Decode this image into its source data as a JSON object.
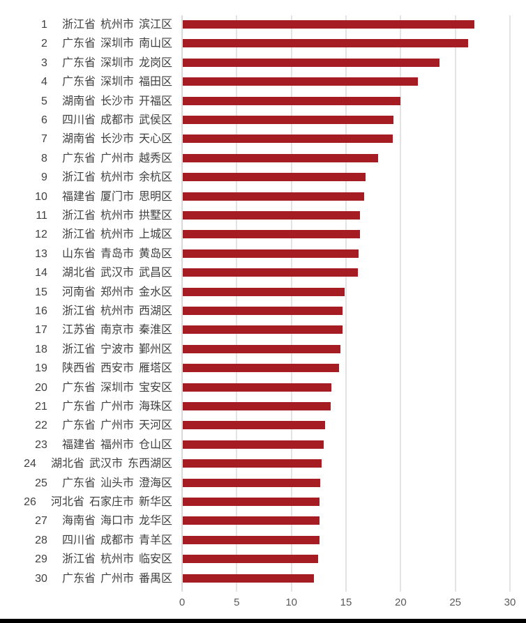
{
  "chart_data": {
    "type": "bar",
    "orientation": "horizontal",
    "title": "",
    "xlabel": "",
    "ylabel": "",
    "xlim": [
      0,
      30
    ],
    "x_ticks": [
      0,
      5,
      10,
      15,
      20,
      25,
      30
    ],
    "grid": true,
    "legend": null,
    "bar_color": "#a51d22",
    "categories": [
      "1 浙江省 杭州市 滨江区",
      "2 广东省 深圳市 南山区",
      "3 广东省 深圳市 龙岗区",
      "4 广东省 深圳市 福田区",
      "5 湖南省 长沙市 开福区",
      "6 四川省 成都市 武侯区",
      "7 湖南省 长沙市 天心区",
      "8 广东省 广州市 越秀区",
      "9 浙江省 杭州市 余杭区",
      "10 福建省 厦门市 思明区",
      "11 浙江省 杭州市 拱墅区",
      "12 浙江省 杭州市 上城区",
      "13 山东省 青岛市 黄岛区",
      "14 湖北省 武汉市 武昌区",
      "15 河南省 郑州市 金水区",
      "16 浙江省 杭州市 西湖区",
      "17 江苏省 南京市 秦淮区",
      "18 浙江省 宁波市 鄞州区",
      "19 陕西省 西安市 雁塔区",
      "20 广东省 深圳市 宝安区",
      "21 广东省 广州市 海珠区",
      "22 广东省 广州市 天河区",
      "23 福建省 福州市 仓山区",
      "24 湖北省 武汉市 东西湖区",
      "25 广东省 汕头市 澄海区",
      "26 河北省 石家庄市 新华区",
      "27 海南省 海口市 龙华区",
      "28 四川省 成都市 青羊区",
      "29 浙江省 杭州市 临安区",
      "30 广东省 广州市 番禺区"
    ],
    "values": [
      26.7,
      26.1,
      23.5,
      21.5,
      19.9,
      19.3,
      19.2,
      17.9,
      16.7,
      16.6,
      16.2,
      16.2,
      16.1,
      16.0,
      14.8,
      14.6,
      14.6,
      14.4,
      14.3,
      13.6,
      13.5,
      13.0,
      12.9,
      12.7,
      12.6,
      12.5,
      12.5,
      12.5,
      12.4,
      12.0
    ]
  },
  "rows": [
    {
      "rank": "1",
      "province": "浙江省",
      "city": "杭州市",
      "district": "滨江区"
    },
    {
      "rank": "2",
      "province": "广东省",
      "city": "深圳市",
      "district": "南山区"
    },
    {
      "rank": "3",
      "province": "广东省",
      "city": "深圳市",
      "district": "龙岗区"
    },
    {
      "rank": "4",
      "province": "广东省",
      "city": "深圳市",
      "district": "福田区"
    },
    {
      "rank": "5",
      "province": "湖南省",
      "city": "长沙市",
      "district": "开福区"
    },
    {
      "rank": "6",
      "province": "四川省",
      "city": "成都市",
      "district": "武侯区"
    },
    {
      "rank": "7",
      "province": "湖南省",
      "city": "长沙市",
      "district": "天心区"
    },
    {
      "rank": "8",
      "province": "广东省",
      "city": "广州市",
      "district": "越秀区"
    },
    {
      "rank": "9",
      "province": "浙江省",
      "city": "杭州市",
      "district": "余杭区"
    },
    {
      "rank": "10",
      "province": "福建省",
      "city": "厦门市",
      "district": "思明区"
    },
    {
      "rank": "11",
      "province": "浙江省",
      "city": "杭州市",
      "district": "拱墅区"
    },
    {
      "rank": "12",
      "province": "浙江省",
      "city": "杭州市",
      "district": "上城区"
    },
    {
      "rank": "13",
      "province": "山东省",
      "city": "青岛市",
      "district": "黄岛区"
    },
    {
      "rank": "14",
      "province": "湖北省",
      "city": "武汉市",
      "district": "武昌区"
    },
    {
      "rank": "15",
      "province": "河南省",
      "city": "郑州市",
      "district": "金水区"
    },
    {
      "rank": "16",
      "province": "浙江省",
      "city": "杭州市",
      "district": "西湖区"
    },
    {
      "rank": "17",
      "province": "江苏省",
      "city": "南京市",
      "district": "秦淮区"
    },
    {
      "rank": "18",
      "province": "浙江省",
      "city": "宁波市",
      "district": "鄞州区"
    },
    {
      "rank": "19",
      "province": "陕西省",
      "city": "西安市",
      "district": "雁塔区"
    },
    {
      "rank": "20",
      "province": "广东省",
      "city": "深圳市",
      "district": "宝安区"
    },
    {
      "rank": "21",
      "province": "广东省",
      "city": "广州市",
      "district": "海珠区"
    },
    {
      "rank": "22",
      "province": "广东省",
      "city": "广州市",
      "district": "天河区"
    },
    {
      "rank": "23",
      "province": "福建省",
      "city": "福州市",
      "district": "仓山区"
    },
    {
      "rank": "24",
      "province": "湖北省",
      "city": "武汉市",
      "district": "东西湖区"
    },
    {
      "rank": "25",
      "province": "广东省",
      "city": "汕头市",
      "district": "澄海区"
    },
    {
      "rank": "26",
      "province": "河北省",
      "city": "石家庄市",
      "district": "新华区"
    },
    {
      "rank": "27",
      "province": "海南省",
      "city": "海口市",
      "district": "龙华区"
    },
    {
      "rank": "28",
      "province": "四川省",
      "city": "成都市",
      "district": "青羊区"
    },
    {
      "rank": "29",
      "province": "浙江省",
      "city": "杭州市",
      "district": "临安区"
    },
    {
      "rank": "30",
      "province": "广东省",
      "city": "广州市",
      "district": "番禺区"
    }
  ],
  "axis": {
    "ticks": [
      "0",
      "5",
      "10",
      "15",
      "20",
      "25",
      "30"
    ]
  }
}
